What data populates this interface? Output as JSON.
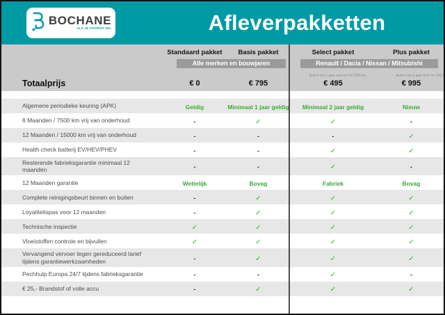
{
  "header": {
    "brand": "BOCHANE",
    "tagline": "ALS JE VOORUIT WIL",
    "title": "Afleverpakketten"
  },
  "columns": [
    {
      "label": "Standaard pakket"
    },
    {
      "label": "Basis pakket"
    },
    {
      "label": "Select pakket"
    },
    {
      "label": "Plus pakket"
    }
  ],
  "groups": [
    {
      "badge": "Alle merken en bouwjaren"
    },
    {
      "badge": "Renault / Dacia / Nissan / Mitsubishi",
      "notes": [
        "Auto's tot 1 jaar oud en 20.000 km",
        "Auto's tot 5 jaar oud en 100.000 km"
      ]
    }
  ],
  "totaalprijs": {
    "label": "Totaalprijs",
    "values": [
      "€ 0",
      "€ 795",
      "€ 495",
      "€ 995"
    ]
  },
  "rows": [
    {
      "label": "Algemene periodieke keuring (APK)",
      "values": [
        "Geldig",
        "Minimaal 1 jaar geldig",
        "Minimaal 2 jaar geldig",
        "Nieuw"
      ]
    },
    {
      "label": "6 Maanden / 7500 km vrij van onderhoud",
      "values": [
        "-",
        "check",
        "check",
        "-"
      ]
    },
    {
      "label": "12 Maanden / 15000 km vrij van onderhoud",
      "values": [
        "-",
        "-",
        "-",
        "check"
      ]
    },
    {
      "label": "Health check batterij EV/HEV/PHEV",
      "values": [
        "-",
        "-",
        "check",
        "check"
      ]
    },
    {
      "label": "Resterende fabrieksgarantie minimaal 12 maanden",
      "values": [
        "-",
        "-",
        "check",
        "-"
      ]
    },
    {
      "label": "12 Maanden garantie",
      "values": [
        "Wettelijk",
        "Bovag",
        "Fabriek",
        "Bovag"
      ]
    },
    {
      "label": "Complete reinigingsbeurt binnen en buiten",
      "values": [
        "-",
        "check",
        "check",
        "check"
      ]
    },
    {
      "label": "Loyaliteitspas voor 12 maanden",
      "values": [
        "-",
        "check",
        "check",
        "check"
      ]
    },
    {
      "label": "Technische inspectie",
      "values": [
        "check",
        "check",
        "check",
        "check"
      ]
    },
    {
      "label": "Vloeistoffen controle en bijvullen",
      "values": [
        "check",
        "check",
        "check",
        "check"
      ]
    },
    {
      "label": "Vervangend vervoer tegen gereduceerd tarief tijdens garantiewerkzaamheden",
      "values": [
        "-",
        "check",
        "check",
        "check"
      ]
    },
    {
      "label": "Pechhulp Europa 24/7 tijdens fabrieksgarantie",
      "values": [
        "-",
        "-",
        "check",
        "-"
      ]
    },
    {
      "label": "€ 25,- Brandstof of volle accu",
      "values": [
        "-",
        "check",
        "check",
        "check"
      ]
    }
  ],
  "icons": {
    "check": "✓",
    "dash": "-"
  },
  "colors": {
    "teal": "#009aa5",
    "head_gray": "#cbcaca",
    "badge_gray": "#9b9b9b",
    "row_gray": "#e8e7e7",
    "green": "#3aa935"
  }
}
